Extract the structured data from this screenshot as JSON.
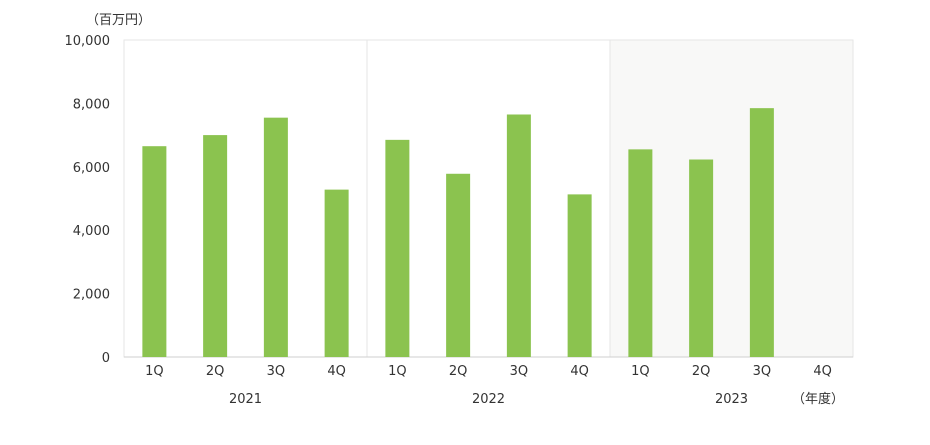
{
  "chart_data": {
    "type": "bar",
    "unit_label": "（百万円）",
    "xaxis_unit_label": "（年度）",
    "ylim": [
      0,
      10000
    ],
    "yticks": [
      0,
      2000,
      4000,
      6000,
      8000,
      10000
    ],
    "ytick_labels": [
      "0",
      "2,000",
      "4,000",
      "6,000",
      "8,000",
      "10,000"
    ],
    "groups": [
      {
        "year": "2021",
        "highlighted": false,
        "categories": [
          "1Q",
          "2Q",
          "3Q",
          "4Q"
        ],
        "values": [
          6650,
          7000,
          7550,
          5280
        ]
      },
      {
        "year": "2022",
        "highlighted": false,
        "categories": [
          "1Q",
          "2Q",
          "3Q",
          "4Q"
        ],
        "values": [
          6850,
          5780,
          7650,
          5130
        ]
      },
      {
        "year": "2023",
        "highlighted": true,
        "categories": [
          "1Q",
          "2Q",
          "3Q",
          "4Q"
        ],
        "values": [
          6550,
          6230,
          7850,
          null
        ]
      }
    ],
    "bar_color": "#8bc34f",
    "highlight_background": "#f8f8f7",
    "grid": false
  }
}
